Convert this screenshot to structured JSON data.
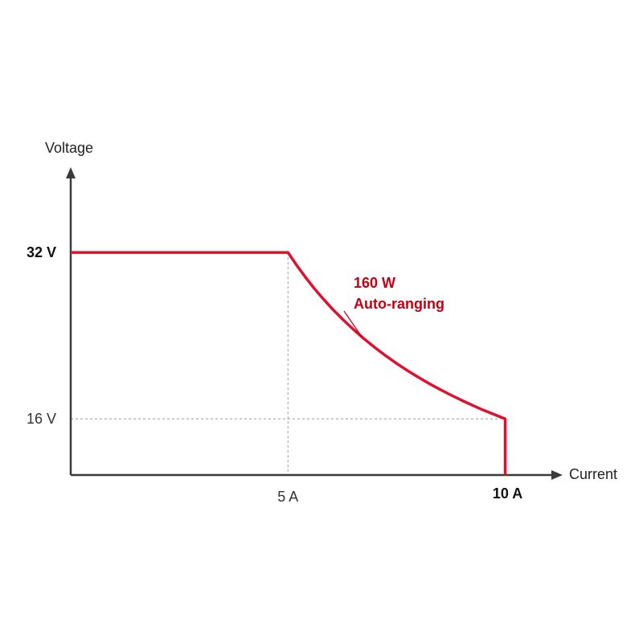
{
  "chart_data": {
    "type": "line",
    "xlabel": "Current",
    "ylabel": "Voltage",
    "x_unit": "A",
    "y_unit": "V",
    "xlim": [
      0,
      10.6
    ],
    "ylim": [
      10.6,
      39
    ],
    "x_ticks": [
      {
        "value": 5,
        "label": "5 A",
        "bold": false
      },
      {
        "value": 10,
        "label": "10 A",
        "bold": true
      }
    ],
    "y_ticks": [
      {
        "value": 32,
        "label": "32 V",
        "bold": true
      },
      {
        "value": 16,
        "label": "16 V",
        "bold": false
      }
    ],
    "guide_lines": [
      {
        "axis": "x",
        "value": 5
      },
      {
        "axis": "y",
        "value": 16
      }
    ],
    "series": [
      {
        "color": "#e0102f",
        "points": [
          [
            0,
            32
          ],
          [
            5,
            32
          ],
          [
            5.2,
            30.77
          ],
          [
            5.4,
            29.63
          ],
          [
            5.6,
            28.57
          ],
          [
            5.8,
            27.59
          ],
          [
            6.0,
            26.67
          ],
          [
            6.25,
            25.6
          ],
          [
            6.5,
            24.62
          ],
          [
            6.75,
            23.7
          ],
          [
            7.0,
            22.86
          ],
          [
            7.25,
            22.07
          ],
          [
            7.5,
            21.33
          ],
          [
            7.75,
            20.65
          ],
          [
            8.0,
            20.0
          ],
          [
            8.25,
            19.39
          ],
          [
            8.5,
            18.82
          ],
          [
            8.75,
            18.29
          ],
          [
            9.0,
            17.78
          ],
          [
            9.25,
            17.3
          ],
          [
            9.5,
            16.84
          ],
          [
            9.75,
            16.41
          ],
          [
            10,
            16
          ],
          [
            10,
            10.6
          ]
        ]
      }
    ],
    "annotations": [
      {
        "lines": [
          "160 W",
          "Auto-ranging"
        ],
        "color": "#c00015",
        "points_to_x": 6.7
      }
    ]
  }
}
